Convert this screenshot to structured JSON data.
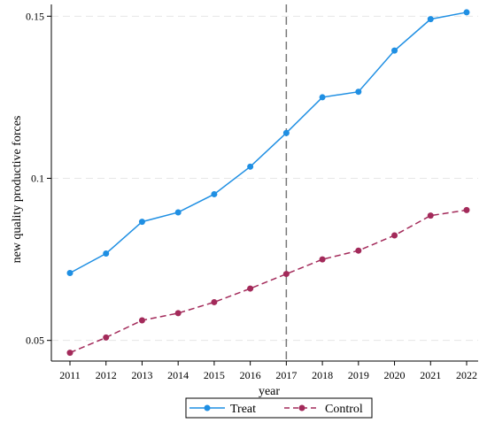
{
  "chart_data": {
    "type": "line",
    "xlabel": "year",
    "ylabel": "new quality productive forces",
    "x": [
      2011,
      2012,
      2013,
      2014,
      2015,
      2016,
      2017,
      2018,
      2019,
      2020,
      2021,
      2022
    ],
    "xlim": [
      2011,
      2022
    ],
    "ylim": [
      0.045,
      0.152
    ],
    "yticks": [
      0.05,
      0.1,
      0.15
    ],
    "ytick_labels": [
      "0.05",
      "0.1",
      "0.15"
    ],
    "grid": "horizontal dashed",
    "reference_line": {
      "x": 2017,
      "style": "dashed"
    },
    "legend_position": "bottom-center",
    "series": [
      {
        "name": "Treat",
        "color": "#1f8fe3",
        "line_style": "solid",
        "values": [
          0.0708,
          0.0768,
          0.0866,
          0.0895,
          0.0951,
          0.1036,
          0.114,
          0.125,
          0.1267,
          0.1394,
          0.1491,
          0.1512
        ]
      },
      {
        "name": "Control",
        "color": "#a32a5a",
        "line_style": "dashed",
        "values": [
          0.0462,
          0.0509,
          0.0562,
          0.0584,
          0.0618,
          0.066,
          0.0705,
          0.075,
          0.0777,
          0.0824,
          0.0885,
          0.0902
        ]
      }
    ]
  }
}
